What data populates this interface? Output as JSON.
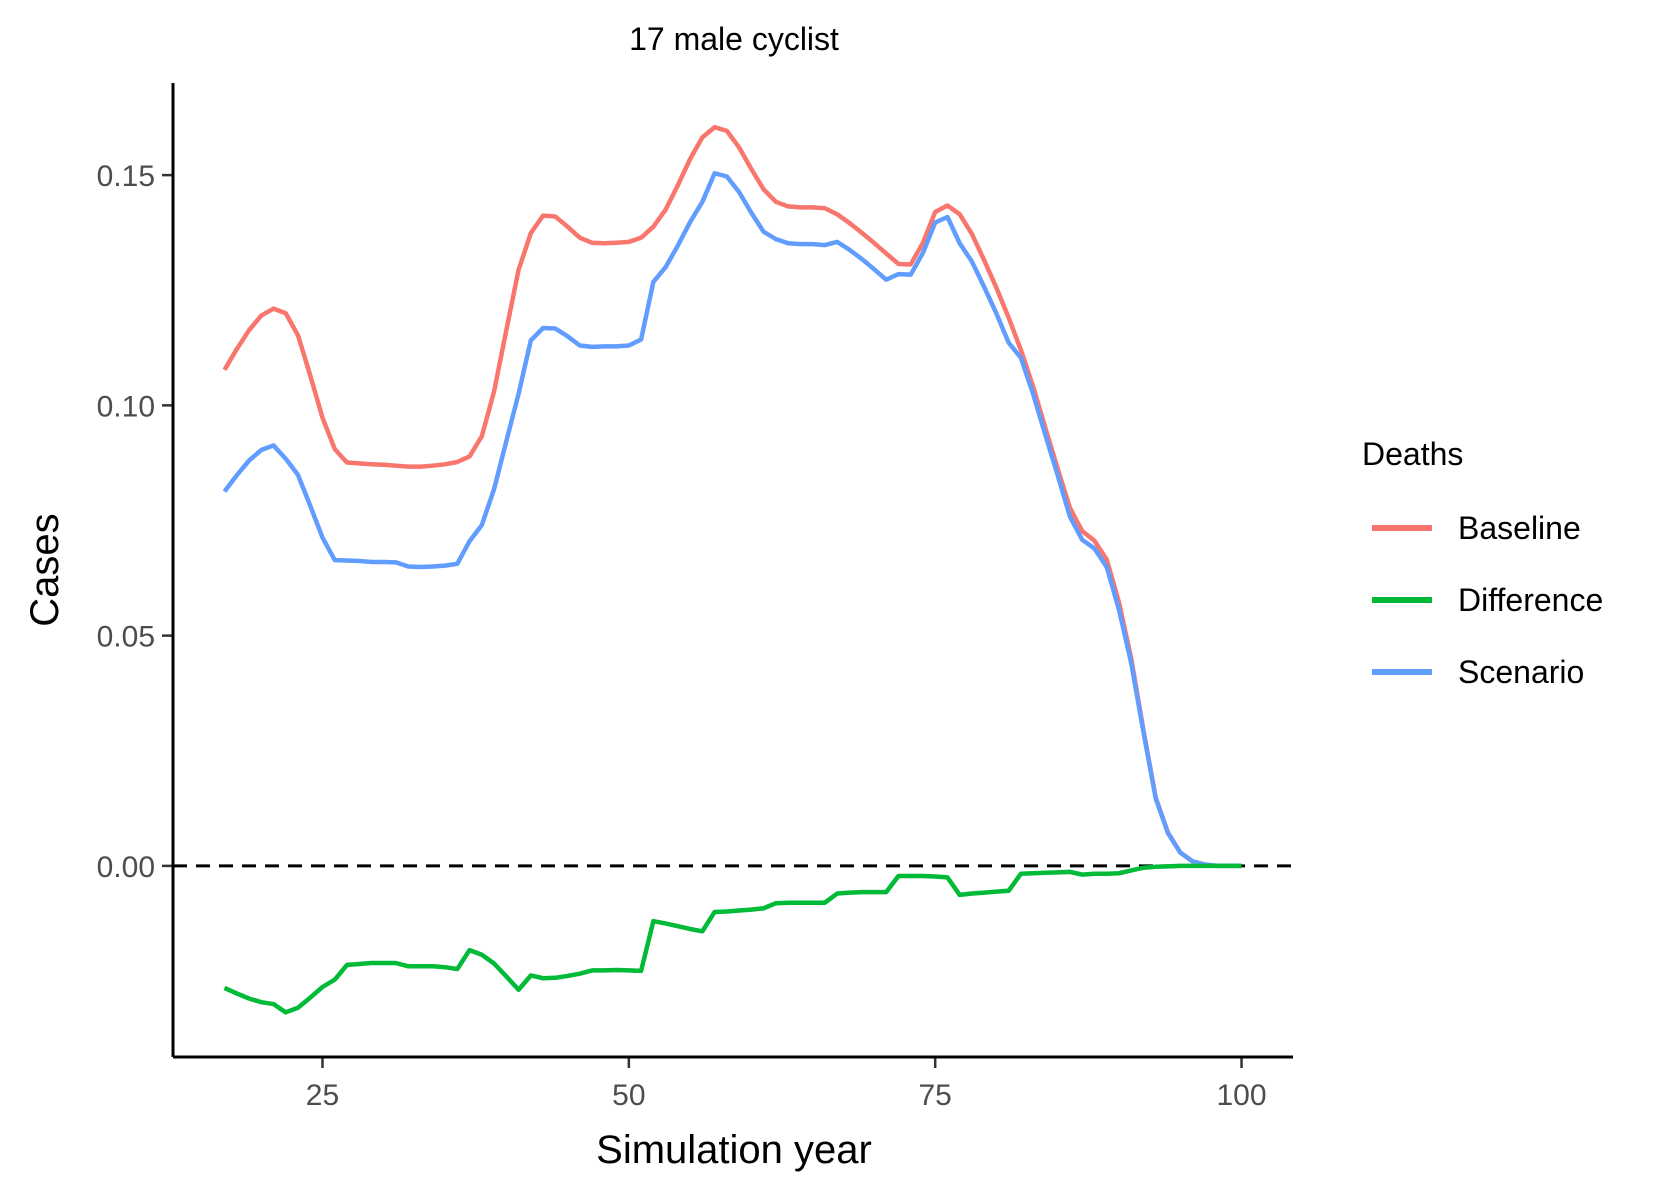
{
  "chart_data": {
    "type": "line",
    "title": "17 male cyclist",
    "xlabel": "Simulation year",
    "ylabel": "Cases",
    "xlim": [
      12.8,
      104.2
    ],
    "ylim": [
      -0.0415,
      0.17
    ],
    "xticks": [
      25,
      50,
      75,
      100
    ],
    "xtick_labels": [
      "25",
      "50",
      "75",
      "100"
    ],
    "yticks": [
      0.0,
      0.05,
      0.1,
      0.15
    ],
    "ytick_labels": [
      "0.00",
      "0.05",
      "0.10",
      "0.15"
    ],
    "reference_line": {
      "y": 0,
      "style": "dashed"
    },
    "grid": false,
    "legend": {
      "title": "Deaths",
      "position": "right"
    },
    "series": [
      {
        "name": "Baseline",
        "color": "#F8766D",
        "points": [
          [
            17,
            0.1077
          ],
          [
            18,
            0.1122
          ],
          [
            19,
            0.1163
          ],
          [
            20,
            0.1195
          ],
          [
            21,
            0.121
          ],
          [
            22,
            0.12
          ],
          [
            23,
            0.1152
          ],
          [
            24,
            0.1065
          ],
          [
            25,
            0.0973
          ],
          [
            26,
            0.0905
          ],
          [
            27,
            0.0876
          ],
          [
            28,
            0.0874
          ],
          [
            29,
            0.0872
          ],
          [
            30,
            0.0871
          ],
          [
            31,
            0.0869
          ],
          [
            32,
            0.0867
          ],
          [
            33,
            0.0867
          ],
          [
            34,
            0.0869
          ],
          [
            35,
            0.0872
          ],
          [
            36,
            0.0877
          ],
          [
            37,
            0.0889
          ],
          [
            38,
            0.0933
          ],
          [
            39,
            0.103
          ],
          [
            40,
            0.1163
          ],
          [
            41,
            0.1294
          ],
          [
            42,
            0.1374
          ],
          [
            43,
            0.1412
          ],
          [
            44,
            0.141
          ],
          [
            45,
            0.1388
          ],
          [
            46,
            0.1364
          ],
          [
            47,
            0.1353
          ],
          [
            48,
            0.1352
          ],
          [
            49,
            0.1353
          ],
          [
            50,
            0.1355
          ],
          [
            51,
            0.1364
          ],
          [
            52,
            0.1388
          ],
          [
            53,
            0.1425
          ],
          [
            54,
            0.1478
          ],
          [
            55,
            0.1535
          ],
          [
            56,
            0.1582
          ],
          [
            57,
            0.1604
          ],
          [
            58,
            0.1596
          ],
          [
            59,
            0.156
          ],
          [
            60,
            0.1513
          ],
          [
            61,
            0.1469
          ],
          [
            62,
            0.1442
          ],
          [
            63,
            0.1432
          ],
          [
            64,
            0.143
          ],
          [
            65,
            0.143
          ],
          [
            66,
            0.1428
          ],
          [
            67,
            0.1415
          ],
          [
            68,
            0.1396
          ],
          [
            69,
            0.1375
          ],
          [
            70,
            0.1353
          ],
          [
            71,
            0.133
          ],
          [
            72,
            0.1307
          ],
          [
            73,
            0.1306
          ],
          [
            74,
            0.1353
          ],
          [
            75,
            0.142
          ],
          [
            76,
            0.1434
          ],
          [
            77,
            0.1415
          ],
          [
            78,
            0.1372
          ],
          [
            79,
            0.1315
          ],
          [
            80,
            0.1255
          ],
          [
            81,
            0.119
          ],
          [
            82,
            0.112
          ],
          [
            83,
            0.104
          ],
          [
            84,
            0.095
          ],
          [
            85,
            0.0862
          ],
          [
            86,
            0.0777
          ],
          [
            87,
            0.0727
          ],
          [
            88,
            0.0706
          ],
          [
            89,
            0.0665
          ],
          [
            90,
            0.0572
          ],
          [
            91,
            0.045
          ],
          [
            92,
            0.0294
          ],
          [
            93,
            0.0148
          ],
          [
            94,
            0.0072
          ],
          [
            95,
            0.0029
          ],
          [
            96,
            0.001
          ],
          [
            97,
            0.0003
          ],
          [
            98,
            0.0
          ],
          [
            99,
            0.0
          ],
          [
            100,
            0.0
          ]
        ]
      },
      {
        "name": "Difference",
        "color": "#00BA38",
        "points": [
          [
            17,
            -0.0265
          ],
          [
            18,
            -0.0277
          ],
          [
            19,
            -0.0288
          ],
          [
            20,
            -0.0296
          ],
          [
            21,
            -0.03
          ],
          [
            22,
            -0.0318
          ],
          [
            23,
            -0.0308
          ],
          [
            24,
            -0.0286
          ],
          [
            25,
            -0.0263
          ],
          [
            26,
            -0.0247
          ],
          [
            27,
            -0.0215
          ],
          [
            28,
            -0.0213
          ],
          [
            29,
            -0.0211
          ],
          [
            30,
            -0.0211
          ],
          [
            31,
            -0.0211
          ],
          [
            32,
            -0.0218
          ],
          [
            33,
            -0.0218
          ],
          [
            34,
            -0.0218
          ],
          [
            35,
            -0.022
          ],
          [
            36,
            -0.0224
          ],
          [
            37,
            -0.0183
          ],
          [
            38,
            -0.0193
          ],
          [
            39,
            -0.0212
          ],
          [
            40,
            -0.024
          ],
          [
            41,
            -0.0269
          ],
          [
            42,
            -0.0238
          ],
          [
            43,
            -0.0244
          ],
          [
            44,
            -0.0243
          ],
          [
            45,
            -0.0239
          ],
          [
            46,
            -0.0234
          ],
          [
            47,
            -0.0227
          ],
          [
            48,
            -0.0227
          ],
          [
            49,
            -0.0226
          ],
          [
            50,
            -0.0227
          ],
          [
            51,
            -0.0228
          ],
          [
            52,
            -0.012
          ],
          [
            53,
            -0.0125
          ],
          [
            54,
            -0.0131
          ],
          [
            55,
            -0.0137
          ],
          [
            56,
            -0.0142
          ],
          [
            57,
            -0.01
          ],
          [
            58,
            -0.0099
          ],
          [
            59,
            -0.0097
          ],
          [
            60,
            -0.0095
          ],
          [
            61,
            -0.0092
          ],
          [
            62,
            -0.0081
          ],
          [
            63,
            -0.008
          ],
          [
            64,
            -0.008
          ],
          [
            65,
            -0.008
          ],
          [
            66,
            -0.008
          ],
          [
            67,
            -0.006
          ],
          [
            68,
            -0.0058
          ],
          [
            69,
            -0.0057
          ],
          [
            70,
            -0.0057
          ],
          [
            71,
            -0.0057
          ],
          [
            72,
            -0.0022
          ],
          [
            73,
            -0.0022
          ],
          [
            74,
            -0.0022
          ],
          [
            75,
            -0.0023
          ],
          [
            76,
            -0.0025
          ],
          [
            77,
            -0.0063
          ],
          [
            78,
            -0.006
          ],
          [
            79,
            -0.0058
          ],
          [
            80,
            -0.0056
          ],
          [
            81,
            -0.0054
          ],
          [
            82,
            -0.0017
          ],
          [
            83,
            -0.0016
          ],
          [
            84,
            -0.0015
          ],
          [
            85,
            -0.0014
          ],
          [
            86,
            -0.0013
          ],
          [
            87,
            -0.0019
          ],
          [
            88,
            -0.0017
          ],
          [
            89,
            -0.0017
          ],
          [
            90,
            -0.0016
          ],
          [
            91,
            -0.001
          ],
          [
            92,
            -0.0004
          ],
          [
            93,
            -0.0002
          ],
          [
            94,
            -0.0001
          ],
          [
            95,
            0.0
          ],
          [
            96,
            0.0
          ],
          [
            97,
            0.0
          ],
          [
            98,
            0.0
          ],
          [
            99,
            0.0
          ],
          [
            100,
            0.0
          ]
        ]
      },
      {
        "name": "Scenario",
        "color": "#619CFF",
        "points": [
          [
            17,
            0.0813
          ],
          [
            18,
            0.0848
          ],
          [
            19,
            0.088
          ],
          [
            20,
            0.0903
          ],
          [
            21,
            0.0913
          ],
          [
            22,
            0.0884
          ],
          [
            23,
            0.0849
          ],
          [
            24,
            0.0782
          ],
          [
            25,
            0.0713
          ],
          [
            26,
            0.0664
          ],
          [
            27,
            0.0663
          ],
          [
            28,
            0.0662
          ],
          [
            29,
            0.066
          ],
          [
            30,
            0.066
          ],
          [
            31,
            0.0659
          ],
          [
            32,
            0.065
          ],
          [
            33,
            0.0649
          ],
          [
            34,
            0.065
          ],
          [
            35,
            0.0652
          ],
          [
            36,
            0.0656
          ],
          [
            37,
            0.0705
          ],
          [
            38,
            0.074
          ],
          [
            39,
            0.0818
          ],
          [
            40,
            0.0922
          ],
          [
            41,
            0.1025
          ],
          [
            42,
            0.1141
          ],
          [
            43,
            0.1168
          ],
          [
            44,
            0.1167
          ],
          [
            45,
            0.115
          ],
          [
            46,
            0.113
          ],
          [
            47,
            0.1127
          ],
          [
            48,
            0.1128
          ],
          [
            49,
            0.1128
          ],
          [
            50,
            0.113
          ],
          [
            51,
            0.1143
          ],
          [
            52,
            0.1268
          ],
          [
            53,
            0.13
          ],
          [
            54,
            0.1347
          ],
          [
            55,
            0.1398
          ],
          [
            56,
            0.1442
          ],
          [
            57,
            0.1504
          ],
          [
            58,
            0.1497
          ],
          [
            59,
            0.1463
          ],
          [
            60,
            0.1418
          ],
          [
            61,
            0.1377
          ],
          [
            62,
            0.1361
          ],
          [
            63,
            0.1352
          ],
          [
            64,
            0.135
          ],
          [
            65,
            0.135
          ],
          [
            66,
            0.1348
          ],
          [
            67,
            0.1355
          ],
          [
            68,
            0.1338
          ],
          [
            69,
            0.1318
          ],
          [
            70,
            0.1296
          ],
          [
            71,
            0.1273
          ],
          [
            72,
            0.1285
          ],
          [
            73,
            0.1284
          ],
          [
            74,
            0.1331
          ],
          [
            75,
            0.1397
          ],
          [
            76,
            0.1409
          ],
          [
            77,
            0.1352
          ],
          [
            78,
            0.1312
          ],
          [
            79,
            0.1257
          ],
          [
            80,
            0.1199
          ],
          [
            81,
            0.1136
          ],
          [
            82,
            0.1103
          ],
          [
            83,
            0.1024
          ],
          [
            84,
            0.0935
          ],
          [
            85,
            0.0848
          ],
          [
            86,
            0.0758
          ],
          [
            87,
            0.0708
          ],
          [
            88,
            0.0689
          ],
          [
            89,
            0.0649
          ],
          [
            90,
            0.0556
          ],
          [
            91,
            0.044
          ],
          [
            92,
            0.029
          ],
          [
            93,
            0.0146
          ],
          [
            94,
            0.0071
          ],
          [
            95,
            0.0029
          ],
          [
            96,
            0.001
          ],
          [
            97,
            0.0003
          ],
          [
            98,
            0.0
          ],
          [
            99,
            0.0
          ],
          [
            100,
            0.0
          ]
        ]
      }
    ]
  }
}
